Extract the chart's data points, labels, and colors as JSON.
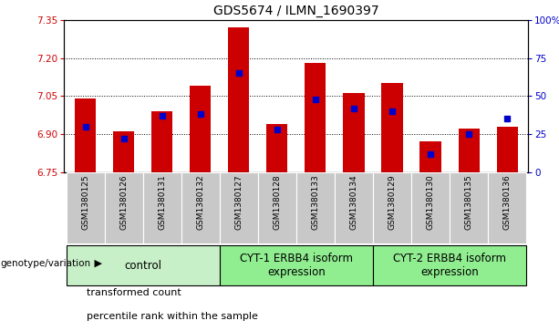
{
  "title": "GDS5674 / ILMN_1690397",
  "samples": [
    "GSM1380125",
    "GSM1380126",
    "GSM1380131",
    "GSM1380132",
    "GSM1380127",
    "GSM1380128",
    "GSM1380133",
    "GSM1380134",
    "GSM1380129",
    "GSM1380130",
    "GSM1380135",
    "GSM1380136"
  ],
  "red_values": [
    7.04,
    6.91,
    6.99,
    7.09,
    7.32,
    6.94,
    7.18,
    7.06,
    7.1,
    6.87,
    6.92,
    6.93
  ],
  "blue_percentiles": [
    30,
    22,
    37,
    38,
    65,
    28,
    48,
    42,
    40,
    12,
    25,
    35
  ],
  "ylim_left": [
    6.75,
    7.35
  ],
  "ylim_right": [
    0,
    100
  ],
  "yticks_left": [
    6.75,
    6.9,
    7.05,
    7.2,
    7.35
  ],
  "yticks_right": [
    0,
    25,
    50,
    75,
    100
  ],
  "baseline": 6.75,
  "bar_color": "#cc0000",
  "blue_color": "#0000cc",
  "plot_bg": "#ffffff",
  "xlabel_color": "#cc0000",
  "groups": [
    {
      "label": "control",
      "start": 0,
      "end": 4,
      "color": "#c8f0c8"
    },
    {
      "label": "CYT-1 ERBB4 isoform\nexpression",
      "start": 4,
      "end": 8,
      "color": "#90ee90"
    },
    {
      "label": "CYT-2 ERBB4 isoform\nexpression",
      "start": 8,
      "end": 12,
      "color": "#90ee90"
    }
  ],
  "legend_items": [
    {
      "color": "#cc0000",
      "label": "transformed count"
    },
    {
      "color": "#0000cc",
      "label": "percentile rank within the sample"
    }
  ],
  "genotype_label": "genotype/variation",
  "title_fontsize": 10,
  "tick_fontsize": 7.5,
  "label_fontsize": 6.5,
  "group_fontsize": 8.5,
  "legend_fontsize": 8,
  "grid_yticks": [
    6.9,
    7.05,
    7.2
  ],
  "sample_box_color": "#c8c8c8"
}
